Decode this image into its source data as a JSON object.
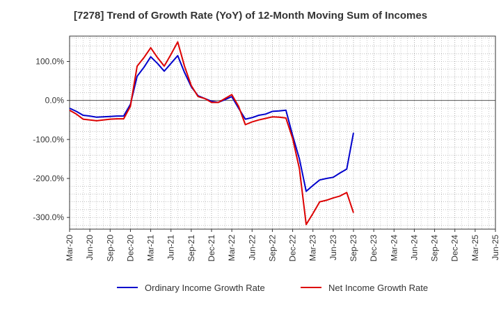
{
  "chart_data": {
    "type": "line",
    "title": "[7278]  Trend of Growth Rate (YoY) of 12-Month Moving Sum of Incomes",
    "xlabel": "",
    "ylabel": "",
    "ylim": [
      -330,
      165
    ],
    "y_ticks": [
      100,
      0,
      -100,
      -200,
      -300
    ],
    "y_tick_labels": [
      "100.0%",
      "0.0%",
      "-100.0%",
      "-200.0%",
      "-300.0%"
    ],
    "x_tick_labels": [
      "Mar-20",
      "Jun-20",
      "Sep-20",
      "Dec-20",
      "Mar-21",
      "Jun-21",
      "Sep-21",
      "Dec-21",
      "Mar-22",
      "Jun-22",
      "Sep-22",
      "Dec-22",
      "Mar-23",
      "Jun-23",
      "Sep-23",
      "Dec-23",
      "Mar-24",
      "Jun-24",
      "Sep-24",
      "Dec-24",
      "Mar-25",
      "Jun-25"
    ],
    "x_start": "Mar-20",
    "grid": true,
    "legend_position": "bottom",
    "series": [
      {
        "name": "Ordinary Income Growth Rate",
        "color": "#0000cc",
        "values": [
          -20,
          -28,
          -38,
          -40,
          -43,
          -42,
          -41,
          -40,
          -40,
          -10,
          62,
          85,
          112,
          95,
          75,
          95,
          115,
          72,
          35,
          12,
          5,
          -2,
          -5,
          2,
          10,
          -20,
          -48,
          -44,
          -38,
          -35,
          -28,
          -27,
          -25,
          -90,
          -150,
          -233,
          -218,
          -204,
          -200,
          -197,
          -186,
          -176,
          -83
        ]
      },
      {
        "name": "Net Income Growth Rate",
        "color": "#dd0000",
        "values": [
          -25,
          -35,
          -48,
          -50,
          -52,
          -50,
          -48,
          -47,
          -47,
          -15,
          88,
          110,
          135,
          110,
          88,
          118,
          150,
          88,
          38,
          10,
          5,
          -5,
          -5,
          5,
          15,
          -15,
          -62,
          -55,
          -50,
          -46,
          -42,
          -43,
          -45,
          -98,
          -175,
          -318,
          -290,
          -260,
          -256,
          -250,
          -245,
          -236,
          -288
        ]
      }
    ]
  }
}
